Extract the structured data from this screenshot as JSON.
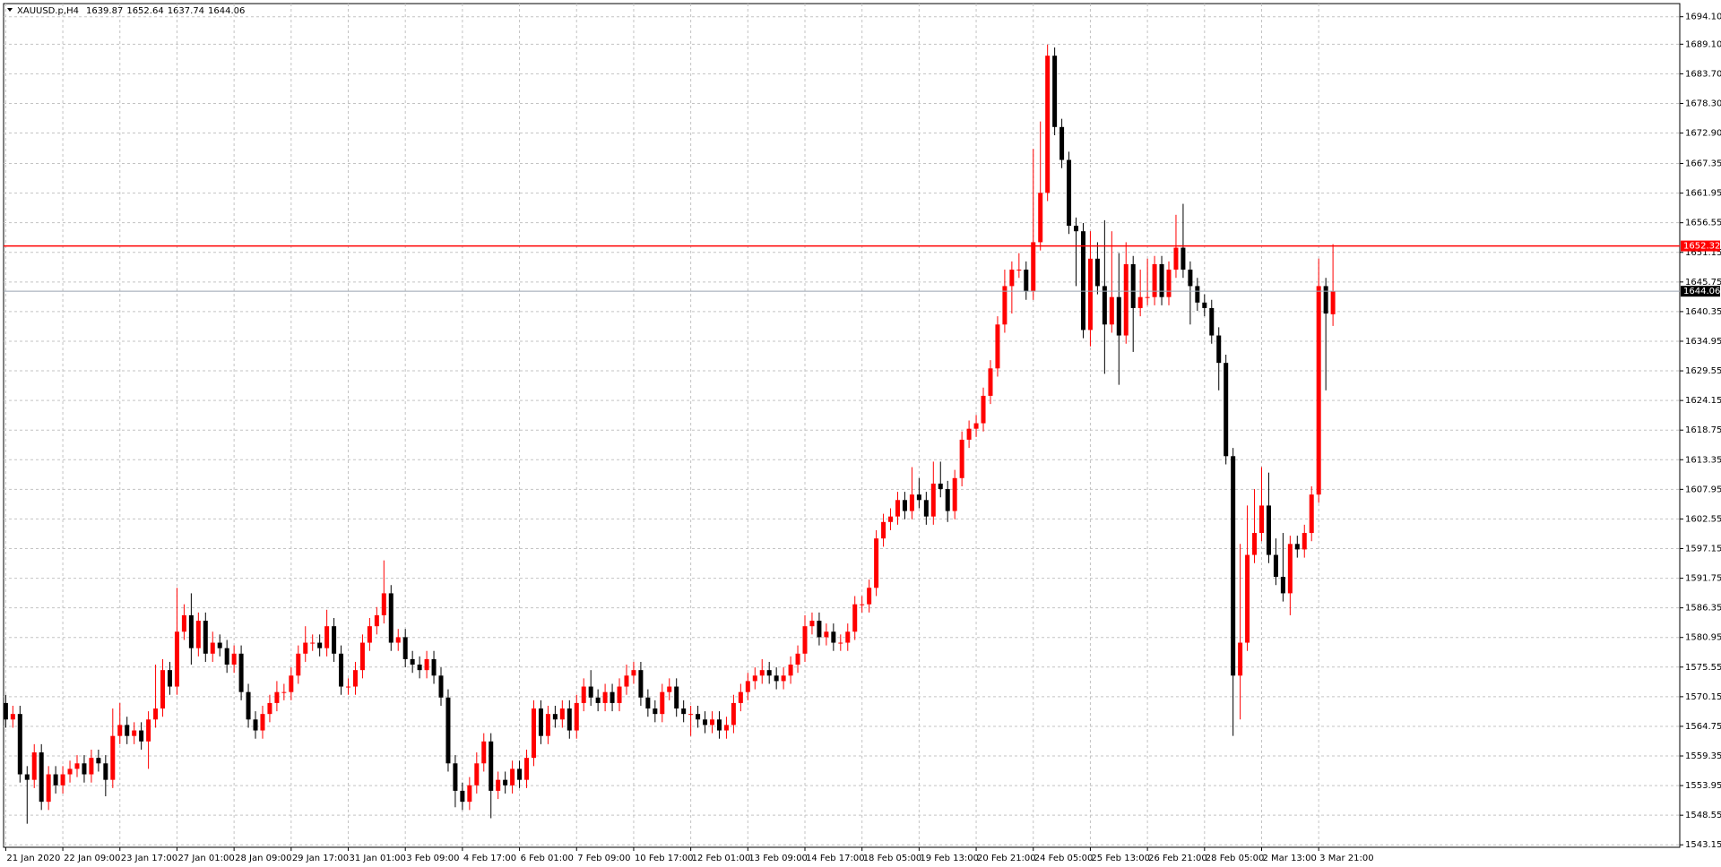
{
  "chart_data": {
    "type": "candlestick",
    "title": "XAUUSD.p,H4",
    "up_color": "#ff0000",
    "down_color": "#000000",
    "grid": true,
    "xlim": [
      -0.3,
      234.6
    ],
    "xticks": [
      {
        "value": 0,
        "label": "21 Jan 2020"
      },
      {
        "value": 8,
        "label": "22 Jan 09:00"
      },
      {
        "value": 16,
        "label": "23 Jan 17:00"
      },
      {
        "value": 24,
        "label": "27 Jan 01:00"
      },
      {
        "value": 32,
        "label": "28 Jan 09:00"
      },
      {
        "value": 40,
        "label": "29 Jan 17:00"
      },
      {
        "value": 48,
        "label": "31 Jan 01:00"
      },
      {
        "value": 56,
        "label": "3 Feb 09:00"
      },
      {
        "value": 64,
        "label": "4 Feb 17:00"
      },
      {
        "value": 72,
        "label": "6 Feb 01:00"
      },
      {
        "value": 80,
        "label": "7 Feb 09:00"
      },
      {
        "value": 88,
        "label": "10 Feb 17:00"
      },
      {
        "value": 96,
        "label": "12 Feb 01:00"
      },
      {
        "value": 104,
        "label": "13 Feb 09:00"
      },
      {
        "value": 112,
        "label": "14 Feb 17:00"
      },
      {
        "value": 120,
        "label": "18 Feb 05:00"
      },
      {
        "value": 128,
        "label": "19 Feb 13:00"
      },
      {
        "value": 136,
        "label": "20 Feb 21:00"
      },
      {
        "value": 144,
        "label": "24 Feb 05:00"
      },
      {
        "value": 152,
        "label": "25 Feb 13:00"
      },
      {
        "value": 160,
        "label": "26 Feb 21:00"
      },
      {
        "value": 168,
        "label": "28 Feb 05:00"
      },
      {
        "value": 176,
        "label": "2 Mar 13:00"
      },
      {
        "value": 184,
        "label": "3 Mar 21:00"
      }
    ],
    "ylim": [
      1542.7,
      1696.5
    ],
    "yticks": [
      {
        "value": 1694.1,
        "label": "1694.10"
      },
      {
        "value": 1689.1,
        "label": "1689.10"
      },
      {
        "value": 1683.7,
        "label": "1683.70"
      },
      {
        "value": 1678.3,
        "label": "1678.30"
      },
      {
        "value": 1672.9,
        "label": "1672.90"
      },
      1667.35,
      1661.95,
      1656.55,
      1651.15,
      1645.75,
      1640.35,
      1634.95,
      1629.55,
      1624.15,
      1618.75,
      1613.35,
      1607.95,
      1602.55,
      1597.15,
      1591.75,
      1586.35,
      1580.95,
      1575.55,
      1570.15,
      1564.75,
      1559.35,
      1553.95,
      1548.55,
      1543.15
    ],
    "hline": 1652.32,
    "hline_color": "#ff0000",
    "open": [
      1569,
      1566,
      1567,
      1556,
      1555,
      1560,
      1551,
      1556,
      1554,
      1556,
      1557,
      1558,
      1556,
      1559,
      1558,
      1555,
      1563,
      1565,
      1563,
      1564,
      1562,
      1566,
      1568,
      1575,
      1572,
      1582,
      1585,
      1579,
      1584,
      1578,
      1580,
      1579,
      1576,
      1578,
      1571,
      1566,
      1564,
      1567,
      1569,
      1571,
      1571,
      1574,
      1578,
      1580,
      1580,
      1579,
      1583,
      1578,
      1572,
      1572,
      1575,
      1580,
      1583,
      1585,
      1589,
      1580,
      1581,
      1577,
      1576,
      1575,
      1577,
      1574,
      1570,
      1558,
      1553,
      1551,
      1554,
      1558,
      1562,
      1553,
      1555,
      1554,
      1557,
      1555,
      1559,
      1568,
      1563,
      1567,
      1566,
      1568,
      1564,
      1569,
      1572,
      1570,
      1569,
      1571,
      1569,
      1572,
      1574,
      1575,
      1570,
      1568,
      1567,
      1571,
      1572,
      1568,
      1567,
      1567,
      1566,
      1565,
      1566,
      1564,
      1565,
      1569,
      1571,
      1573,
      1574,
      1575,
      1574,
      1573,
      1574,
      1576,
      1578,
      1583,
      1584,
      1581,
      1582,
      1580,
      1580,
      1582,
      1587,
      1587,
      1590,
      1599,
      1602,
      1603,
      1606,
      1604,
      1607,
      1606,
      1603,
      1609,
      1608,
      1604,
      1610,
      1617,
      1619,
      1620,
      1625,
      1630,
      1638,
      1645,
      1648,
      1648,
      1644,
      1653,
      1662,
      1687,
      1674,
      1668,
      1656,
      1655,
      1637,
      1650,
      1645,
      1638,
      1643,
      1636,
      1649,
      1641,
      1643,
      1643,
      1649,
      1643,
      1648,
      1652,
      1648,
      1645,
      1642,
      1641,
      1636,
      1631,
      1614,
      1574,
      1580,
      1596,
      1600,
      1605,
      1596,
      1592,
      1589,
      1598,
      1597,
      1600,
      1607,
      1645,
      1639.87
    ],
    "high": [
      1570.5,
      1568.5,
      1568.5,
      1557.5,
      1561.5,
      1561.5,
      1557.5,
      1557.5,
      1557.5,
      1558.5,
      1559.5,
      1559.5,
      1560.5,
      1560.5,
      1559.5,
      1568,
      1569,
      1566.5,
      1565.5,
      1565.5,
      1567.5,
      1576,
      1577,
      1576.5,
      1590,
      1587,
      1589,
      1585.5,
      1585.5,
      1582,
      1581.5,
      1580.5,
      1579.5,
      1579.5,
      1572.5,
      1567.5,
      1568.5,
      1570.5,
      1573,
      1572.5,
      1575.5,
      1579.5,
      1583,
      1581.5,
      1581.5,
      1586,
      1584.5,
      1579.5,
      1573.5,
      1576.5,
      1581.5,
      1584.5,
      1586.5,
      1595,
      1590.5,
      1582.5,
      1582.5,
      1578.5,
      1577.5,
      1578.5,
      1578.5,
      1575.5,
      1571.5,
      1559.5,
      1554.5,
      1555.5,
      1560,
      1563.5,
      1563.5,
      1556.5,
      1556.5,
      1558.5,
      1558.5,
      1560.5,
      1569.5,
      1569.5,
      1568.5,
      1568.5,
      1569.5,
      1569.5,
      1570.5,
      1573.5,
      1575,
      1571.5,
      1572.5,
      1572.5,
      1573.5,
      1576,
      1576.5,
      1576.5,
      1571.5,
      1569.5,
      1572.5,
      1573.5,
      1573.5,
      1569.5,
      1568.5,
      1568.5,
      1567.5,
      1567.5,
      1567.5,
      1566.5,
      1570.5,
      1572.5,
      1574.5,
      1575.5,
      1577,
      1576.5,
      1575.5,
      1575.5,
      1577.5,
      1579.5,
      1585,
      1585.5,
      1585.5,
      1583.5,
      1583.5,
      1581.5,
      1583.5,
      1588.5,
      1588.5,
      1591.5,
      1600.5,
      1603.5,
      1604.5,
      1607.5,
      1607.5,
      1612,
      1610,
      1607.5,
      1613,
      1613,
      1609.5,
      1611.5,
      1618.5,
      1620.5,
      1621.5,
      1626.5,
      1631.5,
      1639.5,
      1648,
      1649.5,
      1651,
      1649.5,
      1670,
      1675,
      1689,
      1688.5,
      1675.5,
      1669.5,
      1657.5,
      1656.5,
      1655,
      1653,
      1657,
      1655,
      1651,
      1653,
      1650.5,
      1648,
      1650,
      1650.5,
      1650.5,
      1649.5,
      1658,
      1660,
      1649.5,
      1646.5,
      1643.5,
      1642.5,
      1637.5,
      1632.5,
      1615.5,
      1598,
      1605,
      1608,
      1612,
      1611,
      1599,
      1600,
      1599.5,
      1599.5,
      1601.5,
      1608.5,
      1650,
      1646.5,
      1652.64
    ],
    "low": [
      1564.5,
      1564.5,
      1554.5,
      1547,
      1553.5,
      1549.5,
      1549.5,
      1552.5,
      1552.5,
      1554.5,
      1555.5,
      1554.5,
      1554.5,
      1556.5,
      1552,
      1553.5,
      1561.5,
      1561.5,
      1561.5,
      1560.5,
      1557,
      1564.5,
      1566.5,
      1570.5,
      1570.5,
      1580.5,
      1576,
      1577.5,
      1576.5,
      1576.5,
      1577.5,
      1574.5,
      1574.5,
      1569.5,
      1564.5,
      1562.5,
      1562.5,
      1565.5,
      1567.5,
      1569.5,
      1569.5,
      1572.5,
      1576.5,
      1578.5,
      1577.5,
      1577.5,
      1576.5,
      1570.5,
      1570.5,
      1570.5,
      1573.5,
      1578.5,
      1581.5,
      1583.5,
      1578.5,
      1578.5,
      1575.5,
      1574.5,
      1573.5,
      1573.5,
      1572.5,
      1568.5,
      1556.5,
      1550,
      1549.5,
      1549.5,
      1552.5,
      1556.5,
      1548,
      1551.5,
      1552.5,
      1552.5,
      1553.5,
      1553.5,
      1557.5,
      1561.5,
      1561.5,
      1564.5,
      1564.5,
      1562.5,
      1562.5,
      1567.5,
      1568.5,
      1567.5,
      1567.5,
      1567.5,
      1567.5,
      1570.5,
      1572.5,
      1568.5,
      1566.5,
      1565.5,
      1565.5,
      1569.5,
      1566.5,
      1565.5,
      1563,
      1564.5,
      1563.5,
      1563.5,
      1562.5,
      1562.5,
      1563.5,
      1567.5,
      1569.5,
      1571.5,
      1572.5,
      1572.5,
      1571.5,
      1571.5,
      1572.5,
      1574.5,
      1576.5,
      1581.5,
      1579.5,
      1579.5,
      1578.5,
      1578.5,
      1578.5,
      1580.5,
      1585.5,
      1585.5,
      1588.5,
      1597.5,
      1600.5,
      1601.5,
      1602.5,
      1602.5,
      1604.5,
      1601.5,
      1601.5,
      1606.5,
      1602,
      1602.5,
      1608.5,
      1615.5,
      1617.5,
      1618.5,
      1623.5,
      1628.5,
      1636.5,
      1640,
      1646.5,
      1642.5,
      1642.5,
      1651.5,
      1660.5,
      1672.5,
      1666.5,
      1654.5,
      1645,
      1635.5,
      1634,
      1643.5,
      1629,
      1636.5,
      1627,
      1634.5,
      1633,
      1639.5,
      1641.5,
      1641.5,
      1641.5,
      1641.5,
      1646.5,
      1646.5,
      1638,
      1640.5,
      1639.5,
      1634.5,
      1626,
      1612.5,
      1563,
      1566,
      1578.5,
      1594.5,
      1598.5,
      1594.5,
      1590.5,
      1587.5,
      1585,
      1595.5,
      1595.5,
      1598.5,
      1605.5,
      1626,
      1637.74
    ],
    "close": [
      1566,
      1567,
      1556,
      1555,
      1560,
      1551,
      1556,
      1554,
      1556,
      1557,
      1558,
      1556,
      1559,
      1558,
      1555,
      1563,
      1565,
      1563,
      1564,
      1562,
      1566,
      1568,
      1575,
      1572,
      1582,
      1585,
      1579,
      1584,
      1578,
      1580,
      1579,
      1576,
      1578,
      1571,
      1566,
      1564,
      1567,
      1569,
      1571,
      1571,
      1574,
      1578,
      1580,
      1580,
      1579,
      1583,
      1578,
      1572,
      1572,
      1575,
      1580,
      1583,
      1585,
      1589,
      1580,
      1581,
      1577,
      1576,
      1575,
      1577,
      1574,
      1570,
      1558,
      1553,
      1551,
      1554,
      1558,
      1562,
      1553,
      1555,
      1554,
      1557,
      1555,
      1559,
      1568,
      1563,
      1567,
      1566,
      1568,
      1564,
      1569,
      1572,
      1570,
      1569,
      1571,
      1569,
      1572,
      1574,
      1575,
      1570,
      1568,
      1567,
      1571,
      1572,
      1568,
      1567,
      1567,
      1566,
      1565,
      1566,
      1564,
      1565,
      1569,
      1571,
      1573,
      1574,
      1575,
      1574,
      1573,
      1574,
      1576,
      1578,
      1583,
      1584,
      1581,
      1582,
      1580,
      1580,
      1582,
      1587,
      1587,
      1590,
      1599,
      1602,
      1603,
      1606,
      1604,
      1607,
      1606,
      1603,
      1609,
      1608,
      1604,
      1610,
      1617,
      1619,
      1620,
      1625,
      1630,
      1638,
      1645,
      1648,
      1648,
      1644,
      1653,
      1662,
      1687,
      1674,
      1668,
      1656,
      1655,
      1637,
      1650,
      1645,
      1638,
      1643,
      1636,
      1649,
      1641,
      1643,
      1643,
      1649,
      1643,
      1648,
      1652,
      1648,
      1645,
      1642,
      1641,
      1636,
      1631,
      1614,
      1574,
      1580,
      1596,
      1600,
      1605,
      1596,
      1592,
      1589,
      1598,
      1597,
      1600,
      1607,
      1645,
      1640,
      1644.06
    ]
  }
}
